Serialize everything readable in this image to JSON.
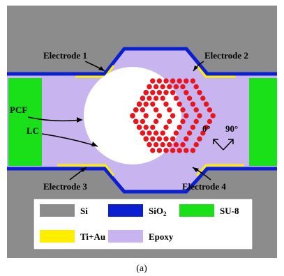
{
  "labels": {
    "electrode_1": "Electrode 1",
    "electrode_2": "Electrode 2",
    "electrode_3": "Electrode 3",
    "electrode_4": "Electrode 4",
    "pcf": "PCF",
    "lc": "LC",
    "angle_0": "0°",
    "angle_90": "90°"
  },
  "legend": [
    {
      "name": "Si",
      "color": "#8c8c8c"
    },
    {
      "name": "SiO",
      "sub": "2",
      "color": "#0a1ed2"
    },
    {
      "name": "SU-8",
      "color": "#19e019"
    },
    {
      "name": "Ti+Au",
      "color": "#ffee00"
    },
    {
      "name": "Epoxy",
      "color": "#c8b4ee"
    }
  ],
  "caption": "(a)",
  "colors": {
    "si": "#8c8c8c",
    "sio2": "#0a1ed2",
    "su8": "#19e019",
    "tiau": "#ffee00",
    "epoxy": "#c8b4ee",
    "lc_hole": "#e8141e",
    "fiber": "#ffffff"
  }
}
